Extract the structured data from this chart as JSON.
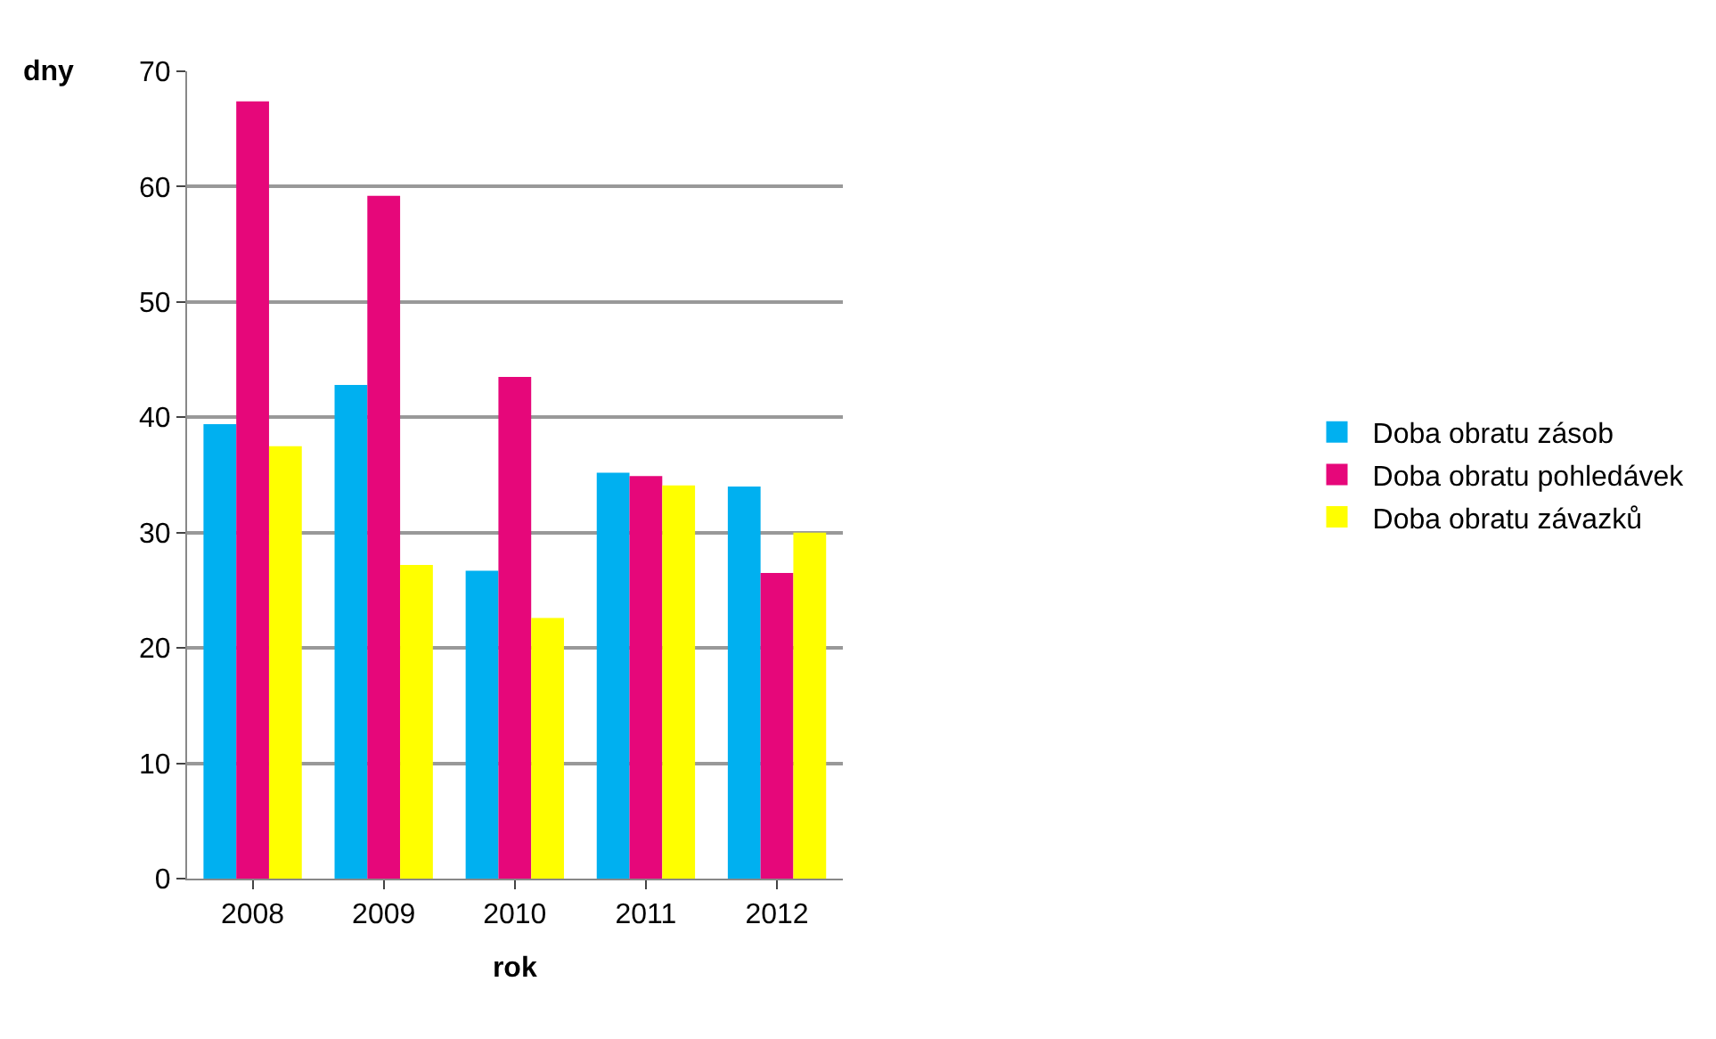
{
  "chart_data": {
    "type": "bar",
    "xlabel": "rok",
    "ylabel": "dny",
    "categories": [
      "2008",
      "2009",
      "2010",
      "2011",
      "2012"
    ],
    "series": [
      {
        "name": "Doba obratu zásob",
        "color": "#00b0f0",
        "values": [
          39.4,
          42.8,
          26.7,
          35.2,
          34.0
        ]
      },
      {
        "name": "Doba obratu pohledávek",
        "color": "#e6077a",
        "values": [
          67.4,
          59.2,
          43.5,
          34.9,
          26.5
        ]
      },
      {
        "name": "Doba obratu závazků",
        "color": "#ffff00",
        "values": [
          37.5,
          27.2,
          22.6,
          34.1,
          30.0
        ]
      }
    ],
    "ylim": [
      0,
      70
    ],
    "yticks": [
      0,
      10,
      20,
      30,
      40,
      50,
      60,
      70
    ],
    "grid": "y",
    "legend": "right"
  }
}
